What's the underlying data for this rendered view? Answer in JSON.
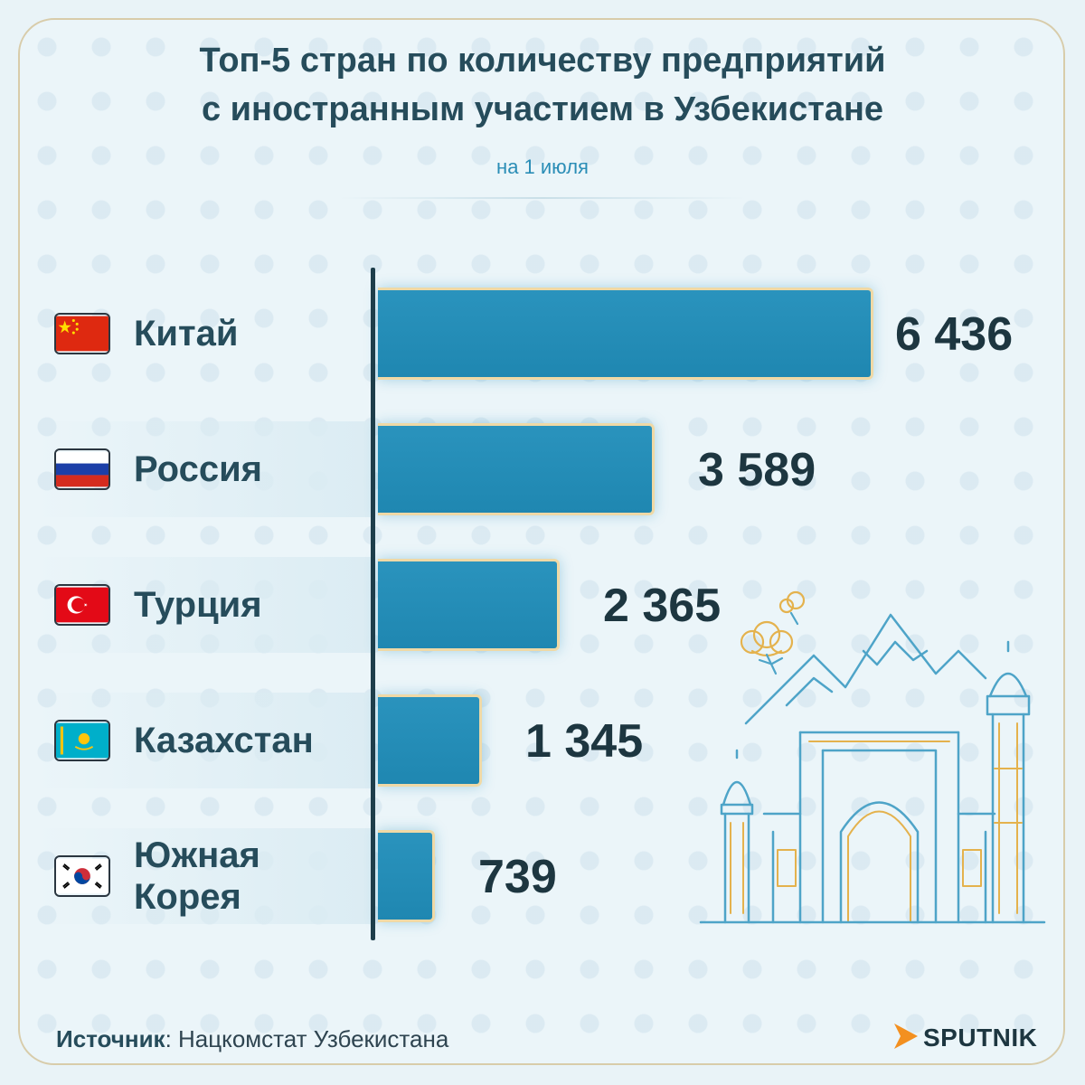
{
  "title_line1": "Топ-5 стран по количеству предприятий",
  "title_line2": "с иностранным участием в Узбекистане",
  "subtitle": "на 1 июля",
  "source_label": "Источник",
  "source_text": ": Нацкомстат Узбекистана",
  "brand": "SPUTNIK",
  "colors": {
    "bar": "#1f87b1",
    "bar_border": "#efd9a6",
    "title": "#264c5b",
    "subtitle": "#2a8db6",
    "accent_orange": "#f39020"
  },
  "chart_data": {
    "type": "bar",
    "orientation": "horizontal",
    "title": "Топ-5 стран по количеству предприятий с иностранным участием в Узбекистане",
    "subtitle": "на 1 июля",
    "categories": [
      "Китай",
      "Россия",
      "Турция",
      "Казахстан",
      "Южная Корея"
    ],
    "values": [
      6436,
      3589,
      2365,
      1345,
      739
    ],
    "value_labels": [
      "6 436",
      "3 589",
      "2 365",
      "1 345",
      "739"
    ],
    "flags": [
      "china-flag-icon",
      "russia-flag-icon",
      "turkey-flag-icon",
      "kazakhstan-flag-icon",
      "south-korea-flag-icon"
    ],
    "country_lines": [
      [
        "Китай"
      ],
      [
        "Россия"
      ],
      [
        "Турция"
      ],
      [
        "Казахстан"
      ],
      [
        "Южная",
        "Корея"
      ]
    ],
    "grid": false,
    "legend": "none"
  }
}
